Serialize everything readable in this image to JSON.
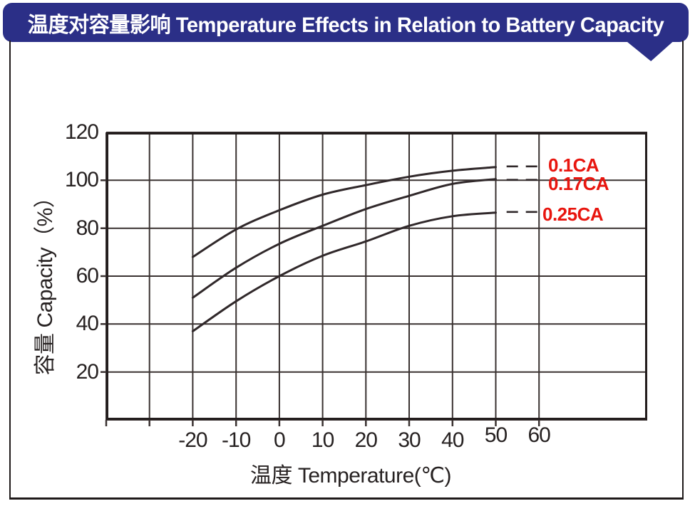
{
  "banner": {
    "title": "温度对容量影响  Temperature Effects in Relation to Battery Capacity",
    "bg_color": "#2b2f87",
    "text_color": "#ffffff"
  },
  "chart_data": {
    "type": "line",
    "title": "温度对容量影响 Temperature Effects in Relation to Battery Capacity",
    "xlabel": "温度  Temperature(℃)",
    "ylabel": "容量  Capacity（%）",
    "grid": true,
    "legend_position": "right-inside",
    "x_axis": {
      "min": -40,
      "max": 85,
      "gridline_values": [
        -40,
        -30,
        -20,
        -10,
        0,
        10,
        20,
        30,
        40,
        50,
        60
      ],
      "tick_values": [
        -20,
        -10,
        0,
        10,
        20,
        30,
        40,
        50,
        60
      ],
      "tick_labels": [
        "-20",
        "-10",
        "0",
        "10",
        "20",
        "30",
        "40",
        "50",
        "60"
      ]
    },
    "y_axis": {
      "min": 0,
      "max": 120,
      "gridline_values": [
        0,
        20,
        40,
        60,
        80,
        100,
        120
      ],
      "tick_values": [
        120,
        100,
        80,
        60,
        40,
        20
      ],
      "tick_labels": [
        "120",
        "100",
        "80",
        "60",
        "40",
        "20"
      ]
    },
    "series": [
      {
        "name": "0.1CA",
        "points": [
          [
            -20,
            68
          ],
          [
            -10,
            79.5
          ],
          [
            0,
            87.5
          ],
          [
            10,
            94
          ],
          [
            20,
            98
          ],
          [
            30,
            101.5
          ],
          [
            40,
            104
          ],
          [
            50,
            105.5
          ]
        ],
        "dash_from": 52.5,
        "dash_to": 60,
        "dash_value": 105.8,
        "label_value": 106.3
      },
      {
        "name": "0.17CA",
        "points": [
          [
            -20,
            51
          ],
          [
            -10,
            63.5
          ],
          [
            0,
            73.5
          ],
          [
            10,
            81
          ],
          [
            20,
            88
          ],
          [
            30,
            93.5
          ],
          [
            40,
            98.5
          ],
          [
            50,
            100.5
          ]
        ],
        "dash_from": 52.5,
        "dash_to": 60,
        "dash_value": 100.2,
        "label_value": 98.7
      },
      {
        "name": "0.25CA",
        "points": [
          [
            -20,
            37
          ],
          [
            -10,
            49.5
          ],
          [
            0,
            60
          ],
          [
            10,
            68.5
          ],
          [
            20,
            74.5
          ],
          [
            30,
            81
          ],
          [
            40,
            85
          ],
          [
            50,
            86.5
          ]
        ],
        "dash_from": 52.5,
        "dash_to": 60,
        "dash_value": 86.8,
        "label_value": 85.8
      }
    ],
    "colors": {
      "curve": "#30282a",
      "grid": "#3a3231",
      "border": "#231d1d",
      "series_label": "#e8150e",
      "tick_text": "#272222"
    }
  }
}
